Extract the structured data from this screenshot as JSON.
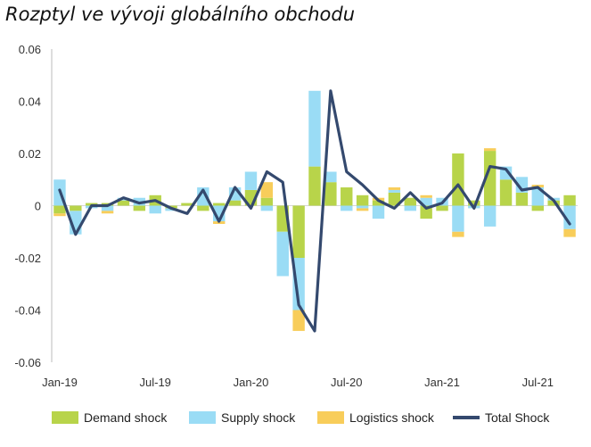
{
  "title": "Rozptyl ve vývoji globálního obchodu",
  "chart_data": {
    "type": "bar",
    "stacked": true,
    "categories": [
      "Jan-19",
      "Feb-19",
      "Mar-19",
      "Apr-19",
      "May-19",
      "Jun-19",
      "Jul-19",
      "Aug-19",
      "Sep-19",
      "Oct-19",
      "Nov-19",
      "Dec-19",
      "Jan-20",
      "Feb-20",
      "Mar-20",
      "Apr-20",
      "May-20",
      "Jun-20",
      "Jul-20",
      "Aug-20",
      "Sep-20",
      "Oct-20",
      "Nov-20",
      "Dec-20",
      "Jan-21",
      "Feb-21",
      "Mar-21",
      "Apr-21",
      "May-21",
      "Jun-21",
      "Jul-21",
      "Aug-21",
      "Sep-21"
    ],
    "x_tick_labels": [
      "Jan-19",
      "Jul-19",
      "Jan-20",
      "Jul-20",
      "Jan-21",
      "Jul-21"
    ],
    "x_tick_indices": [
      0,
      6,
      12,
      18,
      24,
      30
    ],
    "y_ticks": [
      "0.06",
      "0.04",
      "0.02",
      "0",
      "-0.02",
      "-0.04",
      "-0.06"
    ],
    "ylim": [
      -0.06,
      0.06
    ],
    "series": [
      {
        "name": "Demand shock",
        "kind": "bar",
        "color": "#b8d44a",
        "values": [
          -0.003,
          -0.002,
          0.001,
          0.001,
          0.002,
          -0.002,
          0.004,
          -0.001,
          0.001,
          -0.002,
          0.001,
          0.002,
          0.006,
          0.003,
          -0.01,
          -0.02,
          0.015,
          0.009,
          0.007,
          0.004,
          0.002,
          0.005,
          0.003,
          -0.005,
          -0.002,
          0.02,
          0.002,
          0.021,
          0.01,
          0.005,
          -0.002,
          0.002,
          0.004
        ]
      },
      {
        "name": "Supply shock",
        "kind": "bar",
        "color": "#9adcf5",
        "values": [
          0.01,
          -0.009,
          -0.001,
          -0.002,
          0.001,
          0.003,
          -0.003,
          -0.001,
          0.0,
          0.007,
          -0.006,
          0.005,
          0.007,
          -0.002,
          -0.017,
          -0.02,
          0.029,
          0.004,
          -0.002,
          -0.001,
          -0.005,
          0.001,
          -0.002,
          0.003,
          0.003,
          -0.01,
          -0.001,
          -0.008,
          0.005,
          0.006,
          0.007,
          0.001,
          -0.009
        ]
      },
      {
        "name": "Logistics shock",
        "kind": "bar",
        "color": "#f8cd5a",
        "values": [
          -0.001,
          0.0,
          0.0,
          -0.001,
          0.0,
          0.0,
          0.0,
          0.0,
          0.0,
          0.0,
          -0.001,
          0.0,
          0.0,
          0.006,
          0.0,
          -0.008,
          0.0,
          0.0,
          0.0,
          -0.001,
          0.001,
          0.001,
          0.0,
          0.001,
          0.0,
          -0.002,
          0.0,
          0.001,
          0.0,
          0.0,
          0.001,
          0.0,
          -0.003
        ]
      },
      {
        "name": "Total Shock",
        "kind": "line",
        "color": "#34496e",
        "values": [
          0.006,
          -0.011,
          0.0,
          0.0,
          0.003,
          0.001,
          0.002,
          -0.001,
          -0.003,
          0.006,
          -0.006,
          0.007,
          -0.001,
          0.013,
          0.009,
          -0.038,
          -0.048,
          0.044,
          0.013,
          0.008,
          0.002,
          -0.001,
          0.005,
          -0.001,
          0.001,
          0.008,
          -0.001,
          0.015,
          0.014,
          0.006,
          0.007,
          0.002,
          -0.007
        ]
      }
    ],
    "legend": "bottom",
    "grid": false
  }
}
